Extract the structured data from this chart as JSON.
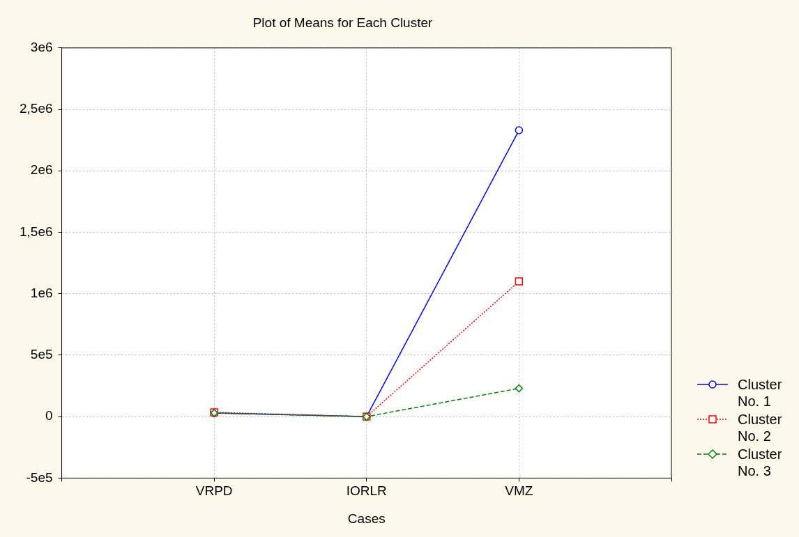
{
  "chart_data": {
    "type": "line",
    "title": "Plot of Means for Each Cluster",
    "xlabel": "Cases",
    "categories": [
      "VRPD",
      "IORLR",
      "VMZ"
    ],
    "series": [
      {
        "name": "Cluster No. 1",
        "color": "#0000ff",
        "marker": "circle",
        "line_style": "solid",
        "values": [
          30000,
          0,
          2330000
        ]
      },
      {
        "name": "Cluster No. 2",
        "color": "#ff0000",
        "marker": "square",
        "line_style": "dotted",
        "values": [
          35000,
          0,
          1100000
        ]
      },
      {
        "name": "Cluster No. 3",
        "color": "#008000",
        "marker": "diamond",
        "line_style": "dashed",
        "values": [
          30000,
          0,
          230000
        ]
      }
    ],
    "ylim": [
      -500000,
      3000000
    ],
    "yticks": [
      {
        "value": -500000,
        "label": "-5e5"
      },
      {
        "value": 0,
        "label": "0"
      },
      {
        "value": 500000,
        "label": "5e5"
      },
      {
        "value": 1000000,
        "label": "1e6"
      },
      {
        "value": 1500000,
        "label": "1,5e6"
      },
      {
        "value": 2000000,
        "label": "2e6"
      },
      {
        "value": 2500000,
        "label": "2,5e6"
      },
      {
        "value": 3000000,
        "label": "3e6"
      }
    ],
    "grid": true,
    "legend": "right"
  }
}
